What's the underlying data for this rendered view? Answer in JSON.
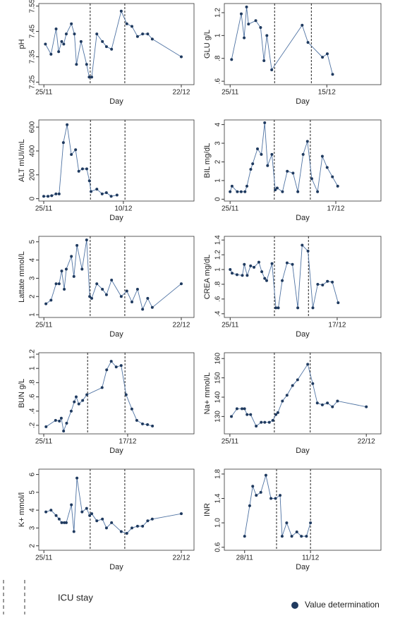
{
  "chart_data": [
    {
      "type": "line",
      "y_label": "pH",
      "x_label": "Day",
      "x": [
        0.3,
        1.4,
        2.4,
        2.9,
        3.5,
        3.9,
        4.4,
        5.4,
        6,
        6.4,
        7.3,
        8.4,
        8.9,
        9.4,
        10.4,
        11.5,
        12.3,
        13.3,
        15.2,
        16.3,
        17.3,
        18.4,
        19.4,
        20.4,
        21.3,
        27
      ],
      "values": [
        7.4,
        7.36,
        7.46,
        7.37,
        7.41,
        7.4,
        7.44,
        7.48,
        7.44,
        7.32,
        7.41,
        7.32,
        7.27,
        7.27,
        7.44,
        7.41,
        7.39,
        7.38,
        7.53,
        7.48,
        7.47,
        7.43,
        7.44,
        7.44,
        7.42,
        7.35
      ],
      "xlim": [
        -1,
        29.5
      ],
      "ylim": [
        7.24,
        7.56
      ],
      "xticks": [
        {
          "value": 0,
          "label": "25/11"
        },
        {
          "value": 27,
          "label": "22/12"
        }
      ],
      "yticks": [
        7.25,
        7.35,
        7.45,
        7.55
      ],
      "icu_lines": [
        9.1,
        15.9
      ],
      "color": "#1f3a5f",
      "line_color": "#4f73a3"
    },
    {
      "type": "line",
      "y_label": "GLU g/L",
      "x_label": "Day",
      "x": [
        0.3,
        2.3,
        2.9,
        3.4,
        3.8,
        5.3,
        6.3,
        7,
        7.6,
        8.6,
        14.9,
        16.1,
        19.1,
        20.1,
        21.2
      ],
      "values": [
        0.79,
        1.19,
        0.98,
        1.25,
        1.1,
        1.13,
        1.07,
        0.78,
        1.0,
        0.7,
        1.09,
        0.94,
        0.81,
        0.84,
        0.66
      ],
      "xlim": [
        -1.2,
        31.2
      ],
      "ylim": [
        0.57,
        1.28
      ],
      "xticks": [
        {
          "value": 0,
          "label": "25/11"
        },
        {
          "value": 20,
          "label": "15/12"
        }
      ],
      "yticks": [
        {
          "value": 0.6,
          "label": ".6"
        },
        {
          "value": 0.8,
          "label": ".8"
        },
        1,
        1.2
      ],
      "icu_lines": [
        9.2,
        16.8
      ],
      "color": "#1f3a5f",
      "line_color": "#4f73a3"
    },
    {
      "type": "line",
      "y_label": "ALT mUI/mL",
      "x_label": "Day",
      "x": [
        0,
        0.8,
        1.5,
        2.3,
        2.9,
        3.7,
        4.4,
        5.2,
        6,
        6.6,
        7.3,
        8.1,
        8.6,
        8.9,
        10,
        11,
        11.8,
        12.7,
        13.8
      ],
      "values": [
        20,
        20,
        25,
        40,
        40,
        470,
        620,
        370,
        410,
        230,
        250,
        250,
        150,
        60,
        80,
        40,
        50,
        20,
        30
      ],
      "xlim": [
        -0.93,
        28.3
      ],
      "ylim": [
        -20,
        660
      ],
      "xticks": [
        {
          "value": 0,
          "label": "25/11"
        },
        {
          "value": 15,
          "label": "10/12"
        }
      ],
      "yticks": [
        0,
        200,
        400,
        600
      ],
      "icu_lines": [
        8.8,
        15.3
      ],
      "color": "#1f3a5f",
      "line_color": "#4f73a3"
    },
    {
      "type": "line",
      "y_label": "BIL mg/dL",
      "x_label": "Day",
      "x": [
        0,
        0.4,
        1.5,
        2.3,
        3.1,
        3.5,
        4.3,
        4.7,
        5.7,
        6.5,
        7.2,
        7.8,
        8.7,
        9.4,
        9.8,
        10.9,
        11.9,
        13.1,
        14.1,
        15.2,
        16.1,
        17,
        18.2,
        19.2,
        20.2,
        21.3,
        22.4
      ],
      "values": [
        0.4,
        0.7,
        0.4,
        0.4,
        0.4,
        0.7,
        1.6,
        1.9,
        2.7,
        2.4,
        4.1,
        1.8,
        2.4,
        0.5,
        0.6,
        0.4,
        1.5,
        1.4,
        0.4,
        2.4,
        3.1,
        1.1,
        0.4,
        2.3,
        1.7,
        1.2,
        0.7
      ],
      "xlim": [
        -1.2,
        31.4
      ],
      "ylim": [
        -0.1,
        4.25
      ],
      "xticks": [
        {
          "value": 0,
          "label": "25/11"
        },
        {
          "value": 22,
          "label": "17/12"
        }
      ],
      "yticks": [
        0,
        1,
        2,
        3,
        4
      ],
      "icu_lines": [
        9.2,
        16.7
      ],
      "color": "#1f3a5f",
      "line_color": "#4f73a3"
    },
    {
      "type": "line",
      "y_label": "Lattate mmol/L",
      "x_label": "Day",
      "x": [
        0.4,
        1.4,
        2.4,
        3,
        3.5,
        4,
        4.4,
        5.4,
        5.9,
        6.5,
        7.5,
        8.4,
        9,
        9.4,
        10.4,
        11.5,
        12.3,
        13.3,
        15.2,
        16.3,
        17.3,
        18.4,
        19.4,
        20.4,
        21.3,
        27
      ],
      "values": [
        1.6,
        1.8,
        2.7,
        2.7,
        3.4,
        2.4,
        3.5,
        4.2,
        3.1,
        4.8,
        3.5,
        5.1,
        2.0,
        1.9,
        2.7,
        2.4,
        2.1,
        2.9,
        2.0,
        2.3,
        1.7,
        2.4,
        1.3,
        1.9,
        1.4,
        2.7
      ],
      "xlim": [
        -1,
        29.5
      ],
      "ylim": [
        0.85,
        5.3
      ],
      "xticks": [
        {
          "value": 0,
          "label": "25/11"
        },
        {
          "value": 27,
          "label": "22/12"
        }
      ],
      "yticks": [
        1,
        2,
        3,
        4,
        5
      ],
      "icu_lines": [
        9.1,
        15.9
      ],
      "color": "#1f3a5f",
      "line_color": "#4f73a3"
    },
    {
      "type": "line",
      "y_label": "CREA mg/dL",
      "x_label": "Day",
      "x": [
        0,
        0.4,
        1.4,
        2.5,
        2.9,
        3.5,
        4.2,
        4.9,
        5.9,
        6.5,
        7.1,
        7.5,
        8.6,
        9.4,
        9.9,
        10.7,
        11.7,
        12.8,
        13.9,
        14.8,
        16,
        17,
        18,
        19,
        20,
        21,
        22.2
      ],
      "values": [
        1.0,
        0.95,
        0.93,
        0.92,
        1.07,
        0.92,
        1.05,
        1.03,
        1.1,
        0.97,
        0.88,
        0.85,
        1.08,
        0.48,
        0.48,
        0.85,
        1.09,
        1.07,
        0.48,
        1.33,
        1.25,
        0.48,
        0.8,
        0.79,
        0.84,
        0.83,
        0.55
      ],
      "xlim": [
        -1.2,
        31
      ],
      "ylim": [
        0.35,
        1.45
      ],
      "xticks": [
        {
          "value": 0,
          "label": "25/11"
        },
        {
          "value": 22,
          "label": "17/12"
        }
      ],
      "yticks": [
        {
          "value": 0.4,
          "label": ".4"
        },
        {
          "value": 0.6,
          "label": ".6"
        },
        {
          "value": 0.8,
          "label": ".8"
        },
        1,
        1.2,
        1.4
      ],
      "icu_lines": [
        9.1,
        16.1
      ],
      "color": "#1f3a5f",
      "line_color": "#4f73a3"
    },
    {
      "type": "line",
      "y_label": "BUN g/L",
      "x_label": "Day",
      "x": [
        0.6,
        3.1,
        4.1,
        4.6,
        5.2,
        6,
        7.2,
        8,
        8.5,
        9.2,
        10.2,
        11.3,
        15.3,
        16.5,
        17.7,
        19,
        20.3,
        21.6,
        23.1,
        24.4,
        25.9,
        27.2,
        28.5
      ],
      "values": [
        0.18,
        0.27,
        0.26,
        0.3,
        0.12,
        0.23,
        0.4,
        0.53,
        0.6,
        0.5,
        0.55,
        0.63,
        0.73,
        0.98,
        1.1,
        1.02,
        1.04,
        0.63,
        0.43,
        0.27,
        0.22,
        0.21,
        0.19
      ],
      "xlim": [
        -1.3,
        39.4
      ],
      "ylim": [
        0.08,
        1.22
      ],
      "xticks": [
        {
          "value": 0,
          "label": "25/11"
        },
        {
          "value": 22,
          "label": "17/12"
        }
      ],
      "yticks": [
        {
          "value": 0.2,
          "label": ".2"
        },
        {
          "value": 0.4,
          "label": ".4"
        },
        {
          "value": 0.6,
          "label": ".6"
        },
        {
          "value": 0.8,
          "label": ".8"
        },
        1,
        1.2
      ],
      "icu_lines": [
        11.5,
        21.3
      ],
      "color": "#1f3a5f",
      "line_color": "#4f73a3"
    },
    {
      "type": "line",
      "y_label": "Na+ mmol/L",
      "x_label": "Day",
      "x": [
        0.3,
        1.4,
        2.4,
        2.9,
        3.4,
        4.1,
        5.2,
        6.2,
        6.9,
        7.8,
        8.5,
        9.1,
        9.5,
        10.4,
        11.3,
        12.4,
        13.4,
        15.4,
        16.4,
        17.3,
        18.3,
        19.3,
        20.3,
        21.3,
        27
      ],
      "values": [
        130,
        134,
        134,
        134,
        131,
        131,
        125,
        127,
        127,
        127,
        128,
        131,
        132,
        138,
        141,
        146,
        149,
        157,
        147,
        137,
        136,
        137,
        135,
        138,
        135
      ],
      "xlim": [
        -1.1,
        29.9
      ],
      "ylim": [
        121,
        163
      ],
      "xticks": [
        {
          "value": 0,
          "label": "25/11"
        },
        {
          "value": 27,
          "label": "22/12"
        }
      ],
      "yticks": [
        130,
        140,
        150,
        160
      ],
      "icu_lines": [
        8.8,
        15.9
      ],
      "color": "#1f3a5f",
      "line_color": "#4f73a3"
    },
    {
      "type": "line",
      "y_label": "K+ mmol/l",
      "x_label": "Day",
      "x": [
        0.4,
        1.4,
        2.4,
        3,
        3.5,
        4,
        4.4,
        5.4,
        5.9,
        6.5,
        7.5,
        8.4,
        9,
        9.4,
        10.4,
        11.5,
        12.3,
        13.3,
        15.2,
        16.3,
        17.3,
        18.4,
        19.4,
        20.4,
        21.3,
        27
      ],
      "values": [
        3.9,
        4.0,
        3.7,
        3.5,
        3.3,
        3.3,
        3.3,
        4.3,
        2.8,
        5.8,
        3.9,
        4.1,
        3.7,
        3.8,
        3.4,
        3.5,
        3.0,
        3.3,
        2.8,
        2.7,
        3.0,
        3.1,
        3.1,
        3.4,
        3.5,
        3.8
      ],
      "xlim": [
        -1,
        29.5
      ],
      "ylim": [
        1.75,
        6.3
      ],
      "xticks": [
        {
          "value": 0,
          "label": "25/11"
        },
        {
          "value": 27,
          "label": "22/12"
        }
      ],
      "yticks": [
        2,
        3,
        4,
        5,
        6
      ],
      "icu_lines": [
        9.1,
        15.9
      ],
      "color": "#1f3a5f",
      "line_color": "#4f73a3"
    },
    {
      "type": "line",
      "y_label": "INR",
      "x_label": "Day",
      "x": [
        3,
        4,
        4.6,
        5.3,
        6.2,
        7.2,
        8.2,
        9.1,
        10,
        10.4,
        11.3,
        12.3,
        13.3,
        14.2,
        15.2,
        16
      ],
      "values": [
        0.78,
        1.28,
        1.6,
        1.45,
        1.5,
        1.78,
        1.4,
        1.4,
        1.45,
        0.78,
        1.0,
        0.78,
        0.85,
        0.78,
        0.78,
        1.0
      ],
      "xlim": [
        -1,
        29.9
      ],
      "ylim": [
        0.55,
        1.88
      ],
      "xticks": [
        {
          "value": 3,
          "label": "28/11"
        },
        {
          "value": 16,
          "label": "11/12"
        }
      ],
      "yticks": [
        0.6,
        {
          "value": 1,
          "label": "1.0"
        },
        1.4,
        1.8
      ],
      "icu_lines": [
        9.3,
        16
      ],
      "color": "#1f3a5f",
      "line_color": "#4f73a3"
    }
  ],
  "legend": {
    "icu_stay": "ICU stay",
    "value_determination": "Value determination"
  }
}
